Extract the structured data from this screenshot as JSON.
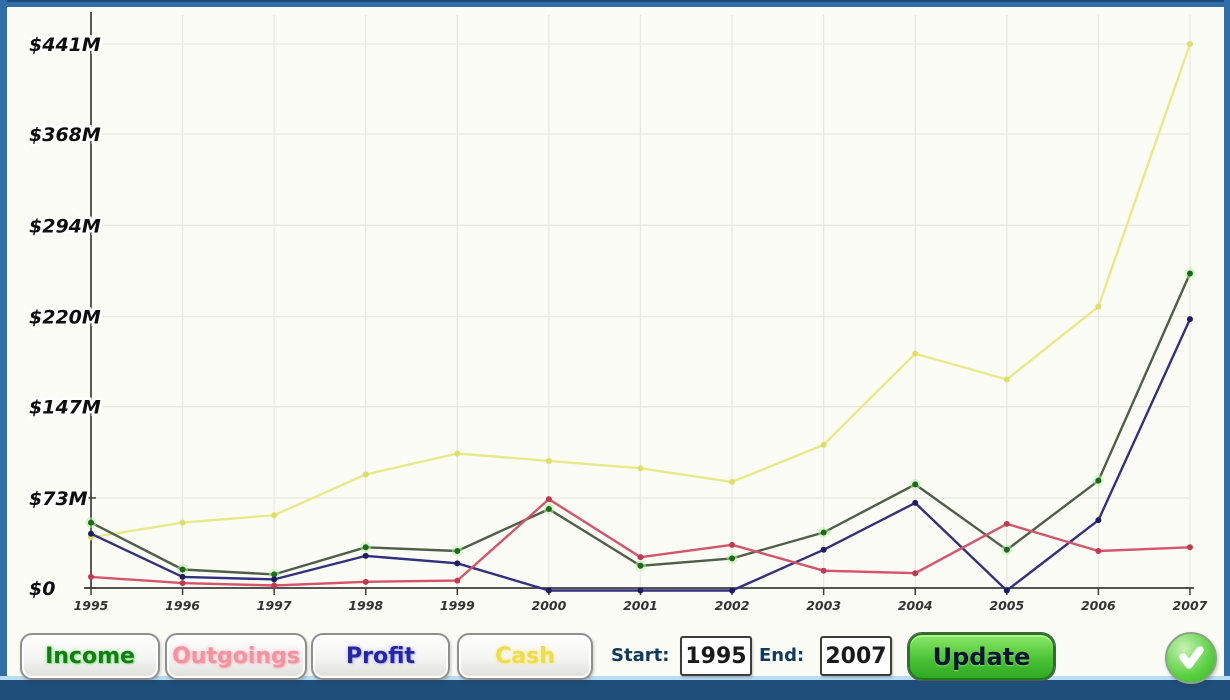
{
  "window": {
    "frame_color": "#2f6ea6",
    "footer_band_color": "#1e4e79",
    "footer_accent_color": "#b9dcf2",
    "background": "#fcfcf6"
  },
  "chart_data": {
    "type": "line",
    "title": "",
    "xlabel": "",
    "ylabel": "",
    "categories": [
      "1995",
      "1996",
      "1997",
      "1998",
      "1999",
      "2000",
      "2001",
      "2002",
      "2003",
      "2004",
      "2005",
      "2006",
      "2007"
    ],
    "y_ticks": [
      0,
      73,
      147,
      220,
      294,
      368,
      441
    ],
    "y_tick_labels": [
      "$0",
      "$73M",
      "$147M",
      "$220M",
      "$294M",
      "$368M",
      "$441M"
    ],
    "ylim": [
      0,
      441
    ],
    "grid": true,
    "legend_position": "none",
    "series": [
      {
        "name": "Income",
        "color": "#4d5f47",
        "marker_color": "#1c6b1c",
        "glow": "#b9f0a8",
        "values": [
          53,
          15,
          11,
          33,
          30,
          64,
          18,
          24,
          45,
          84,
          31,
          87,
          255
        ]
      },
      {
        "name": "Outgoings",
        "color": "#d4556a",
        "marker_color": "#c03a52",
        "glow": "",
        "values": [
          9,
          4,
          2,
          5,
          6,
          72,
          25,
          35,
          14,
          12,
          52,
          30,
          33
        ]
      },
      {
        "name": "Profit",
        "color": "#31317e",
        "marker_color": "#1d1d66",
        "glow": "",
        "values": [
          44,
          9,
          7,
          26,
          20,
          -2,
          -2,
          -2,
          31,
          69,
          -2,
          55,
          218
        ]
      },
      {
        "name": "Cash",
        "color": "#e9e98a",
        "marker_color": "#dede6a",
        "glow": "",
        "values": [
          41,
          53,
          59,
          92,
          109,
          103,
          97,
          86,
          116,
          190,
          169,
          228,
          441
        ]
      }
    ]
  },
  "controls": {
    "series_buttons": [
      {
        "label": "Income",
        "color": "#157c15",
        "glow": "#8fe48f"
      },
      {
        "label": "Outgoings",
        "color": "#f2939f",
        "glow": "#f7bcc4"
      },
      {
        "label": "Profit",
        "color": "#2525a8",
        "glow": "#babaeb"
      },
      {
        "label": "Cash",
        "color": "#eddc4e",
        "glow": "#f5eb9e"
      }
    ],
    "start_label": "Start:",
    "start_value": "1995",
    "end_label": "End:",
    "end_value": "2007",
    "update_label": "Update",
    "confirm_icon": "check-icon"
  }
}
